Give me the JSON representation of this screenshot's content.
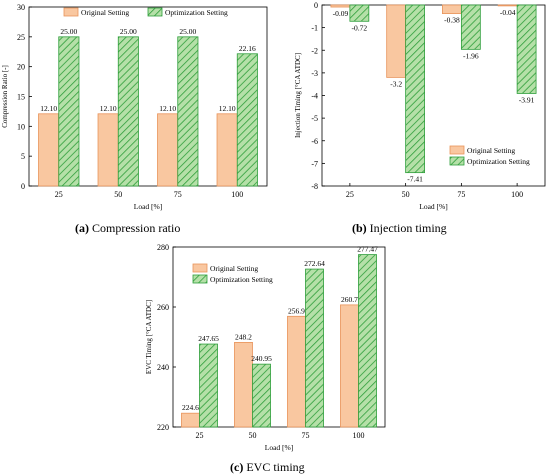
{
  "colors": {
    "original_fill": "#f9c7a0",
    "original_stroke": "#e8935a",
    "optimization_fill": "#b5e0a8",
    "optimization_stroke": "#2e9e3a",
    "axis": "#000000"
  },
  "captions": [
    {
      "letter": "(a)",
      "text": " Compression ratio"
    },
    {
      "letter": "(b)",
      "text": " Injection timing"
    },
    {
      "letter": "(c)",
      "text": " EVC timing"
    }
  ],
  "chart_data": [
    {
      "type": "bar",
      "categories": [
        "25",
        "50",
        "75",
        "100"
      ],
      "series": [
        {
          "name": "Original Setting",
          "values": [
            12.1,
            12.1,
            12.1,
            12.1
          ],
          "labels": [
            "12.10",
            "12.10",
            "12.10",
            "12.10"
          ]
        },
        {
          "name": "Optimization Setting",
          "values": [
            25.0,
            25.0,
            25.0,
            22.16
          ],
          "labels": [
            "25.00",
            "25.00",
            "25.00",
            "22.16"
          ]
        }
      ],
      "xlabel": "Load [%]",
      "ylabel": "Compression Ratio [-]",
      "ylim": [
        0,
        30
      ],
      "yticks": [
        0,
        5,
        10,
        15,
        20,
        25,
        30
      ],
      "legend": "top"
    },
    {
      "type": "bar",
      "categories": [
        "25",
        "50",
        "75",
        "100"
      ],
      "series": [
        {
          "name": "Original Setting",
          "values": [
            -0.09,
            -3.2,
            -0.38,
            -0.04
          ],
          "labels": [
            "-0.09",
            "-3.2",
            "-0.38",
            "-0.04"
          ]
        },
        {
          "name": "Optimization Setting",
          "values": [
            -0.72,
            -7.41,
            -1.96,
            -3.91
          ],
          "labels": [
            "-0.72",
            "-7.41",
            "-1.96",
            "-3.91"
          ]
        }
      ],
      "xlabel": "Load [%]",
      "ylabel": "Injection Timing [°CA ATDC]",
      "ylim": [
        -8,
        0
      ],
      "yticks": [
        -8,
        -7,
        -6,
        -5,
        -4,
        -3,
        -2,
        -1,
        0
      ],
      "legend": "bottom-right"
    },
    {
      "type": "bar",
      "categories": [
        "25",
        "50",
        "75",
        "100"
      ],
      "series": [
        {
          "name": "Original Setting",
          "values": [
            224.6,
            248.2,
            256.9,
            260.7
          ],
          "labels": [
            "224.6",
            "248.2",
            "256.9",
            "260.7"
          ]
        },
        {
          "name": "Optimization Setting",
          "values": [
            247.65,
            240.95,
            272.64,
            277.47
          ],
          "labels": [
            "247.65",
            "240.95",
            "272.64",
            "277.47"
          ]
        }
      ],
      "xlabel": "Load [%]",
      "ylabel": "EVC Timing [°CA ATDC]",
      "ylim": [
        220,
        280
      ],
      "yticks": [
        220,
        240,
        260,
        280
      ],
      "legend": "top-left"
    }
  ]
}
